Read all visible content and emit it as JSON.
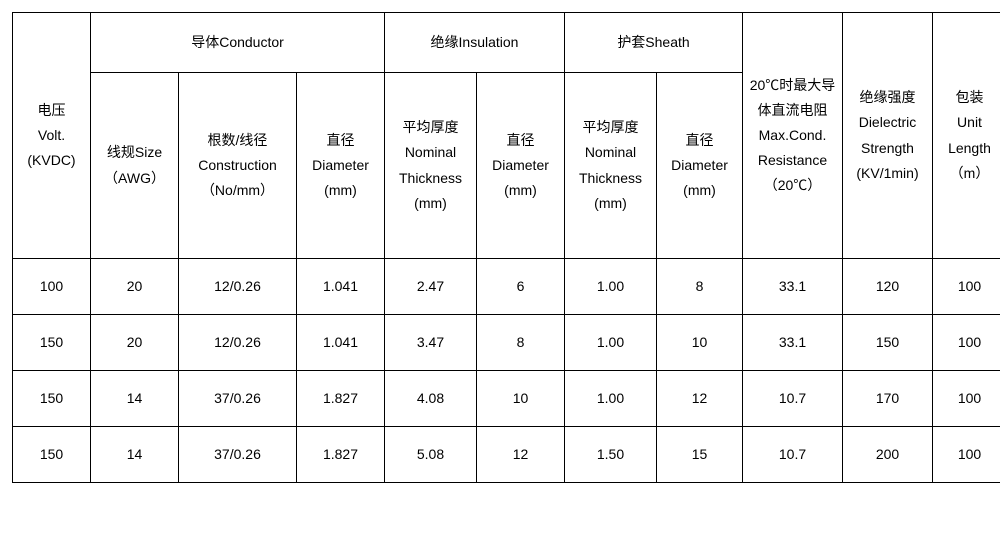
{
  "header": {
    "voltage": {
      "l1": "电压",
      "l2": "Volt.",
      "l3": "(KVDC)"
    },
    "conductor": {
      "group": "导体Conductor",
      "awg": {
        "l1": "线规Size",
        "l2": "（AWG）"
      },
      "construction": {
        "l1": "根数/线径",
        "l2": "Construction",
        "l3": "（No/mm）"
      },
      "diameter": {
        "l1": "直径",
        "l2": "Diameter",
        "l3": "(mm)"
      }
    },
    "insulation": {
      "group": "绝缘Insulation",
      "thickness": {
        "l1": "平均厚度",
        "l2": "Nominal Thickness",
        "l3": "(mm)"
      },
      "diameter": {
        "l1": "直径",
        "l2": "Diameter",
        "l3": "(mm)"
      }
    },
    "sheath": {
      "group": "护套Sheath",
      "thickness": {
        "l1": "平均厚度",
        "l2": "Nominal Thickness",
        "l3": "(mm)"
      },
      "diameter": {
        "l1": "直径",
        "l2": "Diameter (mm)"
      }
    },
    "resistance": {
      "l1": "20℃时最大导",
      "l2": "体直流电阻",
      "l3": "Max.Cond.",
      "l4": "Resistance",
      "l5": "（20℃）"
    },
    "dielectric": {
      "l1": "绝缘强度",
      "l2": "Dielectric Strength",
      "l3": "(KV/1min)"
    },
    "unitlen": {
      "l1": "包装",
      "l2": "Unit Length",
      "l3": "（m）"
    }
  },
  "rows": [
    {
      "volt": "100",
      "awg": "20",
      "constr": "12/0.26",
      "d1": "1.041",
      "t1": "2.47",
      "d2": "6",
      "t2": "1.00",
      "d3": "8",
      "r": "33.1",
      "ds": "120",
      "u": "100"
    },
    {
      "volt": "150",
      "awg": "20",
      "constr": "12/0.26",
      "d1": "1.041",
      "t1": "3.47",
      "d2": "8",
      "t2": "1.00",
      "d3": "10",
      "r": "33.1",
      "ds": "150",
      "u": "100"
    },
    {
      "volt": "150",
      "awg": "14",
      "constr": "37/0.26",
      "d1": "1.827",
      "t1": "4.08",
      "d2": "10",
      "t2": "1.00",
      "d3": "12",
      "r": "10.7",
      "ds": "170",
      "u": "100"
    },
    {
      "volt": "150",
      "awg": "14",
      "constr": "37/0.26",
      "d1": "1.827",
      "t1": "5.08",
      "d2": "12",
      "t2": "1.50",
      "d3": "15",
      "r": "10.7",
      "ds": "200",
      "u": "100"
    }
  ]
}
